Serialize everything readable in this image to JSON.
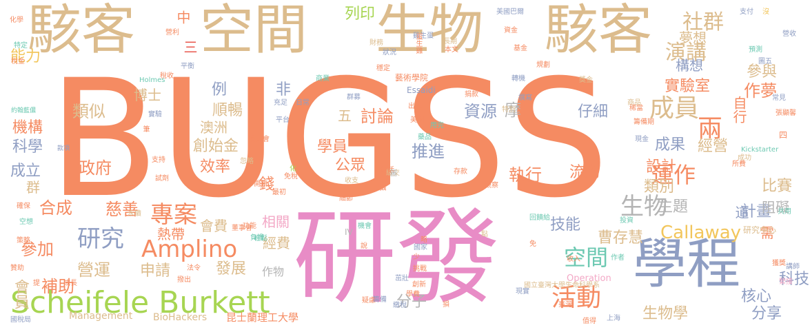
{
  "colors": {
    "orange": "#f58b62",
    "tan": "#dcbc8d",
    "pink": "#e88cc6",
    "blue": "#8f9ec3",
    "green": "#a7d552",
    "teal": "#6dc9b2",
    "gold": "#f2c65c",
    "gray": "#b4b4b4",
    "lightpink": "#f3a8c6",
    "red": "#e8554b"
  },
  "words": [
    {
      "text": "BUGSS",
      "color": "orange"
    },
    {
      "text": "研發",
      "color": "pink"
    },
    {
      "text": "駭客",
      "color": "tan"
    },
    {
      "text": "空間",
      "color": "tan"
    },
    {
      "text": "生物",
      "color": "tan"
    },
    {
      "text": "駭客",
      "color": "tan"
    },
    {
      "text": "學程",
      "color": "blue"
    },
    {
      "text": "Scheifele Burkett",
      "color": "green"
    },
    {
      "text": "Amplino",
      "color": "orange"
    },
    {
      "text": "專案",
      "color": "orange"
    },
    {
      "text": "研究",
      "color": "blue"
    },
    {
      "text": "活動",
      "color": "orange"
    },
    {
      "text": "生物",
      "color": "gray"
    },
    {
      "text": "成員",
      "color": "tan"
    },
    {
      "text": "運作",
      "color": "orange"
    },
    {
      "text": "社群",
      "color": "tan"
    },
    {
      "text": "演講",
      "color": "tan"
    },
    {
      "text": "兩",
      "color": "orange"
    },
    {
      "text": "空間",
      "color": "teal"
    },
    {
      "text": "Callaway",
      "color": "gold"
    },
    {
      "text": "分子",
      "color": "gray"
    },
    {
      "text": "討論",
      "color": "orange"
    },
    {
      "text": "推進",
      "color": "blue"
    },
    {
      "text": "資源",
      "color": "blue"
    },
    {
      "text": "摩",
      "color": "gray"
    },
    {
      "text": "執行",
      "color": "orange"
    },
    {
      "text": "流動",
      "color": "orange"
    },
    {
      "text": "效率",
      "color": "orange"
    },
    {
      "text": "創始金",
      "color": "tan"
    },
    {
      "text": "澳洲",
      "color": "tan"
    },
    {
      "text": "順暢",
      "color": "tan"
    },
    {
      "text": "例",
      "color": "blue"
    },
    {
      "text": "非",
      "color": "blue"
    },
    {
      "text": "類似",
      "color": "tan"
    },
    {
      "text": "機構",
      "color": "orange"
    },
    {
      "text": "科學",
      "color": "blue"
    },
    {
      "text": "成立",
      "color": "blue"
    },
    {
      "text": "群",
      "color": "tan"
    },
    {
      "text": "政府",
      "color": "orange"
    },
    {
      "text": "合成",
      "color": "orange"
    },
    {
      "text": "慈善",
      "color": "orange"
    },
    {
      "text": "營運",
      "color": "tan"
    },
    {
      "text": "補助",
      "color": "orange"
    },
    {
      "text": "參加",
      "color": "orange"
    },
    {
      "text": "會員",
      "color": "tan"
    },
    {
      "text": "能力",
      "color": "gold"
    },
    {
      "text": "博士",
      "color": "tan"
    },
    {
      "text": "會費",
      "color": "tan"
    },
    {
      "text": "經費",
      "color": "tan"
    },
    {
      "text": "相關",
      "color": "lightpink"
    },
    {
      "text": "錢",
      "color": "orange"
    },
    {
      "text": "申請",
      "color": "tan"
    },
    {
      "text": "發展",
      "color": "tan"
    },
    {
      "text": "技能",
      "color": "blue"
    },
    {
      "text": "曹存慧",
      "color": "tan"
    },
    {
      "text": "仔細",
      "color": "blue"
    },
    {
      "text": "學員",
      "color": "orange"
    },
    {
      "text": "公眾",
      "color": "orange"
    },
    {
      "text": "五",
      "color": "tan"
    },
    {
      "text": "成果",
      "color": "blue"
    },
    {
      "text": "經營",
      "color": "tan"
    },
    {
      "text": "設計",
      "color": "orange"
    },
    {
      "text": "類別",
      "color": "tan"
    },
    {
      "text": "主題",
      "color": "gray"
    },
    {
      "text": "計畫",
      "color": "blue"
    },
    {
      "text": "道",
      "color": "blue"
    },
    {
      "text": "比賽",
      "color": "tan"
    },
    {
      "text": "阻礙",
      "color": "gray"
    },
    {
      "text": "需",
      "color": "orange"
    },
    {
      "text": "科技",
      "color": "blue"
    },
    {
      "text": "核心",
      "color": "blue"
    },
    {
      "text": "分享",
      "color": "blue"
    },
    {
      "text": "生物學",
      "color": "tan"
    },
    {
      "text": "實驗室",
      "color": "orange"
    },
    {
      "text": "構想",
      "color": "blue"
    },
    {
      "text": "作夢",
      "color": "orange"
    },
    {
      "text": "自行",
      "color": "orange"
    },
    {
      "text": "參與",
      "color": "tan"
    },
    {
      "text": "夢想",
      "color": "tan"
    },
    {
      "text": "列印",
      "color": "green"
    },
    {
      "text": "中",
      "color": "orange"
    },
    {
      "text": "三",
      "color": "red"
    },
    {
      "text": "熱帶",
      "color": "orange"
    },
    {
      "text": "作物",
      "color": "gray"
    },
    {
      "text": "昆士蘭理工大學",
      "color": "orange"
    },
    {
      "text": "BioHackers",
      "color": "tan"
    },
    {
      "text": "Management",
      "color": "tan"
    },
    {
      "text": "Operation",
      "color": "lightpink"
    },
    {
      "text": "研究中心",
      "color": "tan"
    },
    {
      "text": "國立臺灣大學生命科學系",
      "color": "tan"
    },
    {
      "text": "藝術學院",
      "color": "orange"
    },
    {
      "text": "Essaidi",
      "color": "blue"
    },
    {
      "text": "Holmes",
      "color": "teal"
    },
    {
      "text": "Kickstarter",
      "color": "teal"
    },
    {
      "text": "美國巴爾",
      "color": "blue"
    },
    {
      "text": "雞生蛋",
      "color": "blue"
    },
    {
      "text": "蛋生雞",
      "color": "orange"
    },
    {
      "text": "化學",
      "color": "orange"
    },
    {
      "text": "特定",
      "color": "teal"
    },
    {
      "text": "稅金",
      "color": "orange"
    },
    {
      "text": "約翰藍儂",
      "color": "teal"
    },
    {
      "text": "款項",
      "color": "blue"
    },
    {
      "text": "確保",
      "color": "orange"
    },
    {
      "text": "空想",
      "color": "teal"
    },
    {
      "text": "策略",
      "color": "orange"
    },
    {
      "text": "贊助",
      "color": "orange"
    },
    {
      "text": "提",
      "color": "orange"
    },
    {
      "text": "成長",
      "color": "orange"
    },
    {
      "text": "國稅局",
      "color": "blue"
    },
    {
      "text": "營利",
      "color": "orange"
    },
    {
      "text": "稅收",
      "color": "orange"
    },
    {
      "text": "平衡",
      "color": "blue"
    },
    {
      "text": "實驗",
      "color": "blue"
    },
    {
      "text": "筆",
      "color": "orange"
    },
    {
      "text": "支持",
      "color": "orange"
    },
    {
      "text": "試劑",
      "color": "orange"
    },
    {
      "text": "永續",
      "color": "tan"
    },
    {
      "text": "法令",
      "color": "orange"
    },
    {
      "text": "撥出",
      "color": "orange"
    },
    {
      "text": "董事會",
      "color": "orange"
    },
    {
      "text": "功能",
      "color": "orange"
    },
    {
      "text": "輕鬆",
      "color": "teal"
    },
    {
      "text": "負擔",
      "color": "teal"
    },
    {
      "text": "委員會",
      "color": "orange"
    },
    {
      "text": "充足",
      "color": "blue"
    },
    {
      "text": "平台",
      "color": "blue"
    },
    {
      "text": "忽略",
      "color": "tan"
    },
    {
      "text": "開銷",
      "color": "orange"
    },
    {
      "text": "最初",
      "color": "orange"
    },
    {
      "text": "免稅",
      "color": "orange"
    },
    {
      "text": "化",
      "color": "green"
    },
    {
      "text": "商業",
      "color": "teal"
    },
    {
      "text": "日常",
      "color": "blue"
    },
    {
      "text": "群募",
      "color": "blue"
    },
    {
      "text": "出入",
      "color": "orange"
    },
    {
      "text": "美國",
      "color": "orange"
    },
    {
      "text": "藥品",
      "color": "teal"
    },
    {
      "text": "用完",
      "color": "teal"
    },
    {
      "text": "特別",
      "color": "tan"
    },
    {
      "text": "撰寫",
      "color": "blue"
    },
    {
      "text": "捐款",
      "color": "orange"
    },
    {
      "text": "獎金",
      "color": "tan"
    },
    {
      "text": "商品",
      "color": "tan"
    },
    {
      "text": "稀當",
      "color": "orange"
    },
    {
      "text": "籌備期",
      "color": "orange"
    },
    {
      "text": "現金",
      "color": "blue"
    },
    {
      "text": "成功",
      "color": "tan"
    },
    {
      "text": "所費",
      "color": "orange"
    },
    {
      "text": "圖五",
      "color": "blue"
    },
    {
      "text": "常見",
      "color": "blue"
    },
    {
      "text": "張顯馨",
      "color": "orange"
    },
    {
      "text": "四",
      "color": "orange"
    },
    {
      "text": "共用",
      "color": "teal"
    },
    {
      "text": "講師",
      "color": "blue"
    },
    {
      "text": "獲獎",
      "color": "orange"
    },
    {
      "text": "緊接",
      "color": "lightpink"
    },
    {
      "text": "作者",
      "color": "teal"
    },
    {
      "text": "收入",
      "color": "orange"
    },
    {
      "text": "臺灣",
      "color": "orange"
    },
    {
      "text": "現實",
      "color": "blue"
    },
    {
      "text": "值得",
      "color": "orange"
    },
    {
      "text": "上海",
      "color": "blue"
    },
    {
      "text": "投資",
      "color": "teal"
    },
    {
      "text": "國家",
      "color": "blue"
    },
    {
      "text": "存款",
      "color": "orange"
    },
    {
      "text": "觀察",
      "color": "orange"
    },
    {
      "text": "回饋給",
      "color": "teal"
    },
    {
      "text": "挑戰",
      "color": "orange"
    },
    {
      "text": "創新",
      "color": "orange"
    },
    {
      "text": "略",
      "color": "orange"
    },
    {
      "text": "點",
      "color": "tan"
    },
    {
      "text": "免",
      "color": "orange"
    },
    {
      "text": "少",
      "color": "orange"
    },
    {
      "text": "說",
      "color": "orange"
    },
    {
      "text": "IV",
      "color": "gray"
    },
    {
      "text": "機會",
      "color": "teal"
    },
    {
      "text": "茁壯",
      "color": "blue"
    },
    {
      "text": "繳稅",
      "color": "blue"
    },
    {
      "text": "疑慮",
      "color": "orange"
    },
    {
      "text": "籌備",
      "color": "blue"
    },
    {
      "text": "學費",
      "color": "orange"
    },
    {
      "text": "損",
      "color": "orange"
    },
    {
      "text": "細節",
      "color": "orange"
    },
    {
      "text": "繳交",
      "color": "tan"
    },
    {
      "text": "包括",
      "color": "orange"
    },
    {
      "text": "攝",
      "color": "orange"
    },
    {
      "text": "圖",
      "color": "gray"
    },
    {
      "text": "收支",
      "color": "tan"
    },
    {
      "text": "財務",
      "color": "tan"
    },
    {
      "text": "狀況",
      "color": "blue"
    },
    {
      "text": "穩定",
      "color": "orange"
    },
    {
      "text": "長期",
      "color": "tan"
    },
    {
      "text": "本文",
      "color": "orange"
    },
    {
      "text": "資金",
      "color": "orange"
    },
    {
      "text": "基金",
      "color": "orange"
    },
    {
      "text": "規劃",
      "color": "orange"
    },
    {
      "text": "轉機",
      "color": "blue"
    },
    {
      "text": "支付",
      "color": "blue"
    },
    {
      "text": "沒",
      "color": "gold"
    },
    {
      "text": "營收",
      "color": "blue"
    },
    {
      "text": "預測",
      "color": "teal"
    }
  ]
}
